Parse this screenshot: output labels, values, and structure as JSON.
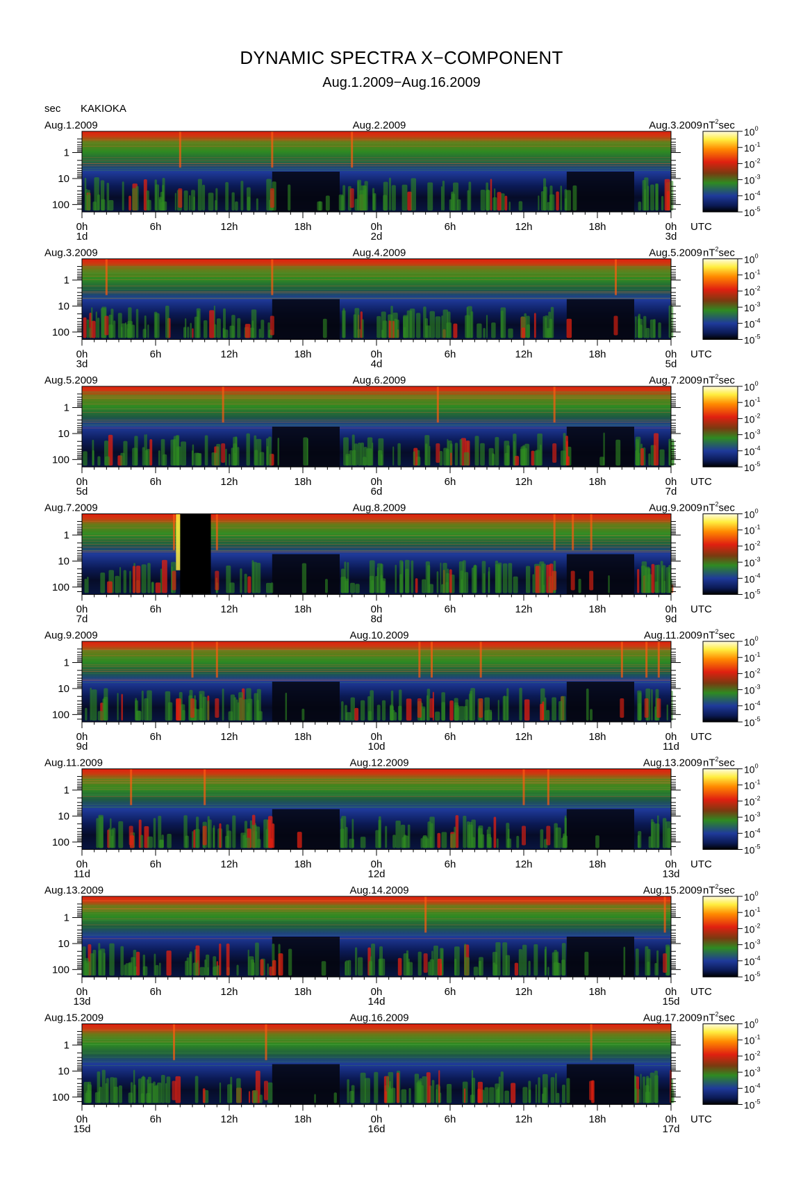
{
  "title": "DYNAMIC SPECTRA X−COMPONENT",
  "subtitle": "Aug.1.2009−Aug.16.2009",
  "station": "KAKIOKA",
  "y_unit": "sec",
  "colorbar_unit": "nT",
  "colorbar_unit_exp": "2",
  "colorbar_unit_suffix": "sec",
  "x_unit": "UTC",
  "colors": {
    "black": "#000000",
    "navy": "#0b1a55",
    "blue": "#1f3a9a",
    "green": "#2f8a22",
    "red": "#e02010",
    "orange": "#ff8a00",
    "yellow": "#ffee40",
    "white": "#ffffff"
  },
  "chart_data": {
    "type": "heatmap",
    "description_of_axes": "period (sec, log scale, increasing downward) vs time (UTC); color = power spectral density nT^2 sec",
    "y_ticks": [
      "1",
      "10",
      "100"
    ],
    "y_scale": "log",
    "x_ticks": [
      "0h",
      "6h",
      "12h",
      "18h",
      "0h",
      "6h",
      "12h",
      "18h",
      "0h"
    ],
    "colorbar_ticks": [
      {
        "base": "10",
        "exp": "0"
      },
      {
        "base": "10",
        "exp": "-1"
      },
      {
        "base": "10",
        "exp": "-2"
      },
      {
        "base": "10",
        "exp": "-3"
      },
      {
        "base": "10",
        "exp": "-4"
      },
      {
        "base": "10",
        "exp": "-5"
      }
    ],
    "panels": [
      {
        "start_date": "Aug.1.2009",
        "mid_date": "Aug.2.2009",
        "end_date": "Aug.3.2009",
        "day_labels": [
          "1d",
          "2d",
          "3d"
        ],
        "data_gap_hours": [],
        "disturbance_hours": [
          8,
          15.5,
          22
        ]
      },
      {
        "start_date": "Aug.3.2009",
        "mid_date": "Aug.4.2009",
        "end_date": "Aug.5.2009",
        "day_labels": [
          "3d",
          "4d",
          "5d"
        ],
        "data_gap_hours": [],
        "disturbance_hours": [
          2,
          15.5,
          43.5
        ]
      },
      {
        "start_date": "Aug.5.2009",
        "mid_date": "Aug.6.2009",
        "end_date": "Aug.7.2009",
        "day_labels": [
          "5d",
          "6d",
          "7d"
        ],
        "data_gap_hours": [],
        "disturbance_hours": [
          11.5,
          29,
          38.5
        ]
      },
      {
        "start_date": "Aug.7.2009",
        "mid_date": "Aug.8.2009",
        "end_date": "Aug.9.2009",
        "day_labels": [
          "7d",
          "8d",
          "9d"
        ],
        "data_gap_hours": [
          8,
          10.5
        ],
        "disturbance_hours": [
          7.5,
          11,
          38.5,
          40,
          41.5
        ]
      },
      {
        "start_date": "Aug.9.2009",
        "mid_date": "Aug.10.2009",
        "end_date": "Aug.11.2009",
        "day_labels": [
          "9d",
          "10d",
          "11d"
        ],
        "data_gap_hours": [],
        "disturbance_hours": [
          9,
          11,
          27.5,
          28.5,
          32.5,
          46,
          47,
          44
        ]
      },
      {
        "start_date": "Aug.11.2009",
        "mid_date": "Aug.12.2009",
        "end_date": "Aug.13.2009",
        "day_labels": [
          "11d",
          "12d",
          "13d"
        ],
        "data_gap_hours": [],
        "disturbance_hours": [
          4,
          10,
          36,
          38
        ]
      },
      {
        "start_date": "Aug.13.2009",
        "mid_date": "Aug.14.2009",
        "end_date": "Aug.15.2009",
        "day_labels": [
          "13d",
          "14d",
          "15d"
        ],
        "data_gap_hours": [],
        "disturbance_hours": [
          28,
          47.5
        ]
      },
      {
        "start_date": "Aug.15.2009",
        "mid_date": "Aug.16.2009",
        "end_date": "Aug.17.2009",
        "day_labels": [
          "15d",
          "16d",
          "17d"
        ],
        "data_gap_hours": [],
        "disturbance_hours": [
          7.5,
          15,
          41.5
        ]
      }
    ]
  }
}
